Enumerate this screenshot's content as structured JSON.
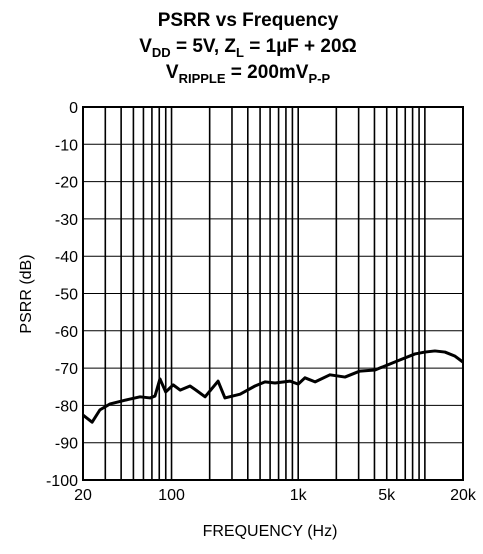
{
  "chart_data": {
    "type": "line",
    "title": "PSRR vs Frequency",
    "subtitle_lines": [
      [
        "V",
        "DD",
        " = 5V, Z",
        "L",
        " = 1µF + 20Ω"
      ],
      [
        "V",
        "RIPPLE",
        " = 200mV",
        "P-P"
      ]
    ],
    "x_label": "FREQUENCY (Hz)",
    "y_label": "PSRR (dB)",
    "x_scale": "log",
    "grid": true,
    "color": "#000000",
    "xlim": [
      20,
      20000
    ],
    "ylim": [
      -100,
      0
    ],
    "xticks": [
      20,
      100,
      {
        "value": 1000,
        "label": "1k"
      },
      {
        "value": 5000,
        "label": "5k"
      },
      {
        "value": 20000,
        "label": "20k"
      }
    ],
    "x_minor_grid": [
      30,
      40,
      50,
      60,
      70,
      80,
      90,
      200,
      300,
      400,
      500,
      600,
      700,
      800,
      900,
      2000,
      3000,
      4000,
      6000,
      7000,
      8000,
      9000,
      10000
    ],
    "yticks": [
      0,
      -10,
      -20,
      -30,
      -40,
      -50,
      -60,
      -70,
      -80,
      -90,
      -100
    ],
    "x": [
      20,
      23.6,
      27.2,
      32.7,
      43,
      56.4,
      67.6,
      74,
      81,
      90,
      103,
      117,
      140,
      156,
      184,
      233,
      264,
      348,
      456,
      547,
      656,
      861,
      1000,
      1130,
      1360,
      1780,
      2340,
      3070,
      4040,
      5300,
      6370,
      8360,
      10000,
      12000,
      14400,
      17300,
      20000
    ],
    "values": [
      -82.6,
      -84.5,
      -81.2,
      -79.6,
      -78.6,
      -77.7,
      -78,
      -77.5,
      -72.9,
      -76.4,
      -74.5,
      -75.9,
      -74.8,
      -75.9,
      -77.7,
      -73.5,
      -78,
      -77,
      -74.8,
      -73.7,
      -74,
      -73.5,
      -74.3,
      -72.6,
      -73.7,
      -71.8,
      -72.4,
      -70.8,
      -70.5,
      -68.9,
      -67.8,
      -66.2,
      -65.7,
      -65.4,
      -65.7,
      -66.8,
      -68.4
    ]
  }
}
